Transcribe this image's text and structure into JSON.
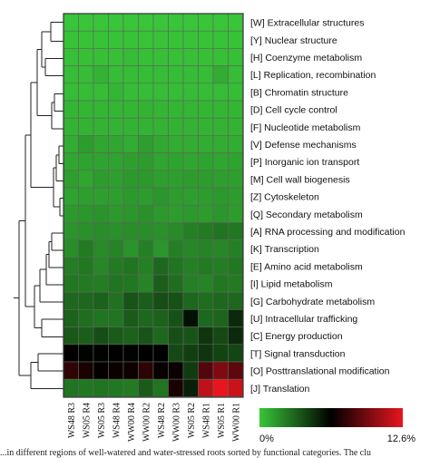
{
  "caption": "...in different regions of well-watered and water-stressed roots sorted by functional categories. The clu",
  "legend": {
    "min_label": "0%",
    "max_label": "12.6%",
    "colors": [
      "#39c539",
      "#000000",
      "#e8151f"
    ]
  },
  "chart_data": {
    "type": "heatmap",
    "rows": [
      "[W] Extracellular structures",
      "[Y] Nuclear structure",
      "[H] Coenzyme metabolism",
      "[L] Replication, recombination",
      "[B] Chromatin structure",
      "[D] Cell cycle control",
      "[F] Nucleotide metabolism",
      "[V] Defense mechanisms",
      "[P] Inorganic ion transport",
      "[M] Cell wall biogenesis",
      "[Z] Cytoskeleton",
      "[Q] Secondary metabolism",
      "[A] RNA processing and modification",
      "[K] Transcription",
      "[E] Amino acid metabolism",
      "[I] Lipid metabolism",
      "[G] Carbohydrate metabolism",
      "[U] Intracellular trafficking",
      "[C] Energy production",
      "[T] Signal transduction",
      "[O] Posttranslational modification",
      "[J] Translation"
    ],
    "columns": [
      "WS48 R3",
      "WS05 R4",
      "WS05 R3",
      "WS48 R4",
      "WW00 R4",
      "WW00 R2",
      "WS48 R2",
      "WW00 R3",
      "WS05 R2",
      "WS48 R1",
      "WS05 R1",
      "WW00 R1"
    ],
    "value_range": [
      0,
      12.6
    ],
    "values": [
      [
        0.0,
        0.0,
        0.0,
        0.0,
        0.0,
        0.0,
        0.0,
        0.0,
        0.0,
        0.0,
        0.0,
        0.0
      ],
      [
        0.1,
        0.1,
        0.1,
        0.1,
        0.1,
        0.1,
        0.1,
        0.1,
        0.1,
        0.1,
        0.1,
        0.1
      ],
      [
        0.2,
        0.2,
        0.2,
        0.2,
        0.3,
        0.2,
        0.2,
        0.2,
        0.2,
        0.2,
        0.2,
        0.2
      ],
      [
        0.3,
        0.3,
        0.6,
        0.3,
        0.3,
        0.3,
        0.3,
        0.3,
        0.3,
        0.3,
        0.8,
        0.3
      ],
      [
        0.3,
        0.3,
        0.3,
        0.5,
        0.3,
        0.3,
        0.3,
        0.3,
        0.3,
        0.3,
        0.3,
        0.3
      ],
      [
        0.5,
        0.5,
        0.5,
        0.5,
        0.5,
        0.6,
        0.5,
        0.5,
        0.5,
        0.5,
        0.5,
        0.5
      ],
      [
        0.6,
        0.6,
        0.6,
        0.6,
        0.6,
        0.6,
        0.6,
        0.6,
        0.6,
        0.6,
        0.6,
        0.6
      ],
      [
        0.8,
        1.3,
        1.0,
        1.0,
        0.8,
        1.2,
        0.9,
        0.8,
        0.8,
        0.8,
        0.8,
        0.8
      ],
      [
        1.0,
        1.1,
        1.1,
        1.1,
        1.2,
        1.3,
        1.0,
        1.1,
        1.0,
        1.1,
        1.0,
        1.1
      ],
      [
        1.2,
        1.0,
        1.3,
        1.2,
        1.4,
        1.4,
        1.2,
        1.2,
        1.3,
        1.3,
        1.2,
        1.2
      ],
      [
        1.1,
        1.2,
        1.2,
        1.2,
        1.4,
        1.3,
        1.5,
        1.3,
        1.2,
        1.3,
        1.4,
        1.3
      ],
      [
        1.4,
        1.5,
        1.6,
        1.4,
        1.5,
        1.7,
        1.4,
        1.3,
        1.4,
        1.3,
        1.5,
        1.3
      ],
      [
        1.6,
        1.7,
        1.8,
        1.7,
        1.8,
        1.8,
        1.7,
        1.9,
        2.2,
        2.4,
        2.6,
        2.5
      ],
      [
        1.8,
        2.4,
        1.9,
        2.1,
        1.6,
        2.2,
        1.5,
        2.2,
        2.0,
        2.1,
        2.0,
        2.2
      ],
      [
        2.3,
        2.5,
        2.0,
        2.4,
        2.6,
        2.2,
        3.0,
        2.6,
        2.2,
        2.4,
        2.3,
        2.5
      ],
      [
        2.5,
        2.4,
        2.3,
        2.6,
        2.5,
        2.1,
        3.3,
        2.8,
        2.2,
        2.1,
        2.5,
        2.4
      ],
      [
        3.0,
        3.0,
        3.2,
        2.7,
        3.6,
        3.3,
        3.8,
        3.7,
        3.0,
        2.8,
        3.0,
        3.0
      ],
      [
        3.2,
        2.8,
        2.6,
        2.6,
        3.4,
        3.0,
        3.2,
        3.7,
        5.8,
        3.0,
        3.1,
        5.0
      ],
      [
        3.5,
        3.3,
        3.8,
        3.4,
        3.2,
        3.6,
        3.0,
        3.8,
        3.6,
        4.6,
        4.0,
        5.0
      ],
      [
        6.4,
        6.2,
        6.2,
        6.3,
        6.2,
        6.3,
        6.3,
        4.0,
        4.3,
        4.6,
        4.2,
        4.1
      ],
      [
        7.6,
        7.0,
        6.4,
        6.6,
        6.7,
        7.5,
        6.5,
        6.6,
        4.4,
        8.5,
        9.7,
        8.8
      ],
      [
        2.6,
        2.5,
        2.6,
        2.5,
        2.4,
        3.4,
        2.6,
        7.0,
        5.3,
        11.5,
        12.6,
        11.8
      ]
    ],
    "legend_placement": "bottom-right"
  }
}
